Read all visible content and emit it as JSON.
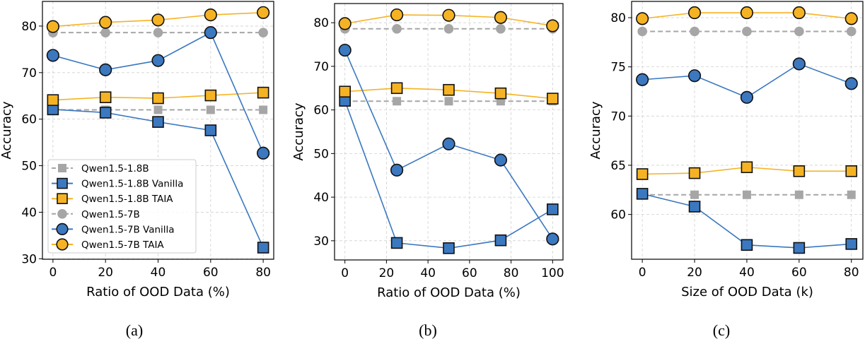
{
  "colors": {
    "blue": "#3b78c0",
    "orange": "#f5b324",
    "gray": "#a6a6a6"
  },
  "legend": [
    {
      "label": "Qwen1.5-1.8B",
      "color": "#a6a6a6",
      "marker": "square",
      "dashed": true
    },
    {
      "label": "Qwen1.5-1.8B Vanilla",
      "color": "#3b78c0",
      "marker": "square",
      "dashed": false
    },
    {
      "label": "Qwen1.5-1.8B TAIA",
      "color": "#f5b324",
      "marker": "square",
      "dashed": false
    },
    {
      "label": "Qwen1.5-7B",
      "color": "#a6a6a6",
      "marker": "circle",
      "dashed": true
    },
    {
      "label": "Qwen1.5-7B Vanilla",
      "color": "#3b78c0",
      "marker": "circle",
      "dashed": false
    },
    {
      "label": "Qwen1.5-7B TAIA",
      "color": "#f5b324",
      "marker": "circle",
      "dashed": false
    }
  ],
  "chart_data": [
    {
      "type": "line",
      "caption": "(a)",
      "xlabel": "Ratio of OOD Data (%)",
      "ylabel": "Accuracy",
      "x": [
        0,
        20,
        40,
        60,
        80
      ],
      "xlim": [
        -4,
        84
      ],
      "ylim": [
        29.9,
        85.3
      ],
      "xticks": [
        0,
        20,
        40,
        60,
        80
      ],
      "yticks": [
        30,
        40,
        50,
        60,
        70,
        80
      ],
      "grid": true,
      "legend_position": "lower-left",
      "series": [
        {
          "name": "Qwen1.5-1.8B",
          "values": [
            62.0,
            62.0,
            62.0,
            62.0,
            62.0
          ]
        },
        {
          "name": "Qwen1.5-1.8B Vanilla",
          "values": [
            62.1,
            61.4,
            59.4,
            57.6,
            32.4
          ]
        },
        {
          "name": "Qwen1.5-1.8B TAIA",
          "values": [
            64.1,
            64.7,
            64.5,
            65.1,
            65.7
          ]
        },
        {
          "name": "Qwen1.5-7B",
          "values": [
            78.6,
            78.6,
            78.6,
            78.6,
            78.6
          ]
        },
        {
          "name": "Qwen1.5-7B Vanilla",
          "values": [
            73.7,
            70.6,
            72.6,
            78.6,
            52.7
          ]
        },
        {
          "name": "Qwen1.5-7B TAIA",
          "values": [
            79.9,
            80.8,
            81.3,
            82.4,
            82.9
          ]
        }
      ]
    },
    {
      "type": "line",
      "caption": "(b)",
      "xlabel": "Ratio of OOD Data (%)",
      "ylabel": "Accuracy",
      "x": [
        0,
        25,
        50,
        75,
        100
      ],
      "xlim": [
        -5,
        105
      ],
      "ylim": [
        25.6,
        84.4
      ],
      "xticks": [
        0,
        20,
        40,
        60,
        80,
        100
      ],
      "yticks": [
        30,
        40,
        50,
        60,
        70,
        80
      ],
      "grid": true,
      "series": [
        {
          "name": "Qwen1.5-1.8B",
          "values": [
            62.0,
            62.0,
            62.0,
            62.0,
            62.0
          ]
        },
        {
          "name": "Qwen1.5-1.8B Vanilla",
          "values": [
            62.1,
            29.5,
            28.3,
            30.1,
            37.2
          ]
        },
        {
          "name": "Qwen1.5-1.8B TAIA",
          "values": [
            64.2,
            65.0,
            64.6,
            63.8,
            62.6
          ]
        },
        {
          "name": "Qwen1.5-7B",
          "values": [
            78.6,
            78.6,
            78.6,
            78.6,
            78.6
          ]
        },
        {
          "name": "Qwen1.5-7B Vanilla",
          "values": [
            73.7,
            46.2,
            52.2,
            48.5,
            30.4
          ]
        },
        {
          "name": "Qwen1.5-7B TAIA",
          "values": [
            79.8,
            81.8,
            81.7,
            81.2,
            79.3
          ]
        }
      ]
    },
    {
      "type": "line",
      "caption": "(c)",
      "xlabel": "Size of OOD Data (k)",
      "ylabel": "Accuracy",
      "x": [
        0,
        20,
        40,
        60,
        80
      ],
      "xlim": [
        -4.1,
        84.4
      ],
      "ylim": [
        55.45,
        81.65
      ],
      "xticks": [
        0,
        20,
        40,
        60,
        80
      ],
      "yticks": [
        60,
        65,
        70,
        75,
        80
      ],
      "grid": true,
      "series": [
        {
          "name": "Qwen1.5-1.8B",
          "values": [
            62.0,
            62.0,
            62.0,
            62.0,
            62.0
          ]
        },
        {
          "name": "Qwen1.5-1.8B Vanilla",
          "values": [
            62.1,
            60.8,
            56.9,
            56.6,
            57.0
          ]
        },
        {
          "name": "Qwen1.5-1.8B TAIA",
          "values": [
            64.1,
            64.2,
            64.8,
            64.4,
            64.4
          ]
        },
        {
          "name": "Qwen1.5-7B",
          "values": [
            78.6,
            78.6,
            78.6,
            78.6,
            78.6
          ]
        },
        {
          "name": "Qwen1.5-7B Vanilla",
          "values": [
            73.7,
            74.1,
            71.9,
            75.3,
            73.3
          ]
        },
        {
          "name": "Qwen1.5-7B TAIA",
          "values": [
            79.9,
            80.5,
            80.5,
            80.5,
            79.9
          ]
        }
      ]
    }
  ]
}
